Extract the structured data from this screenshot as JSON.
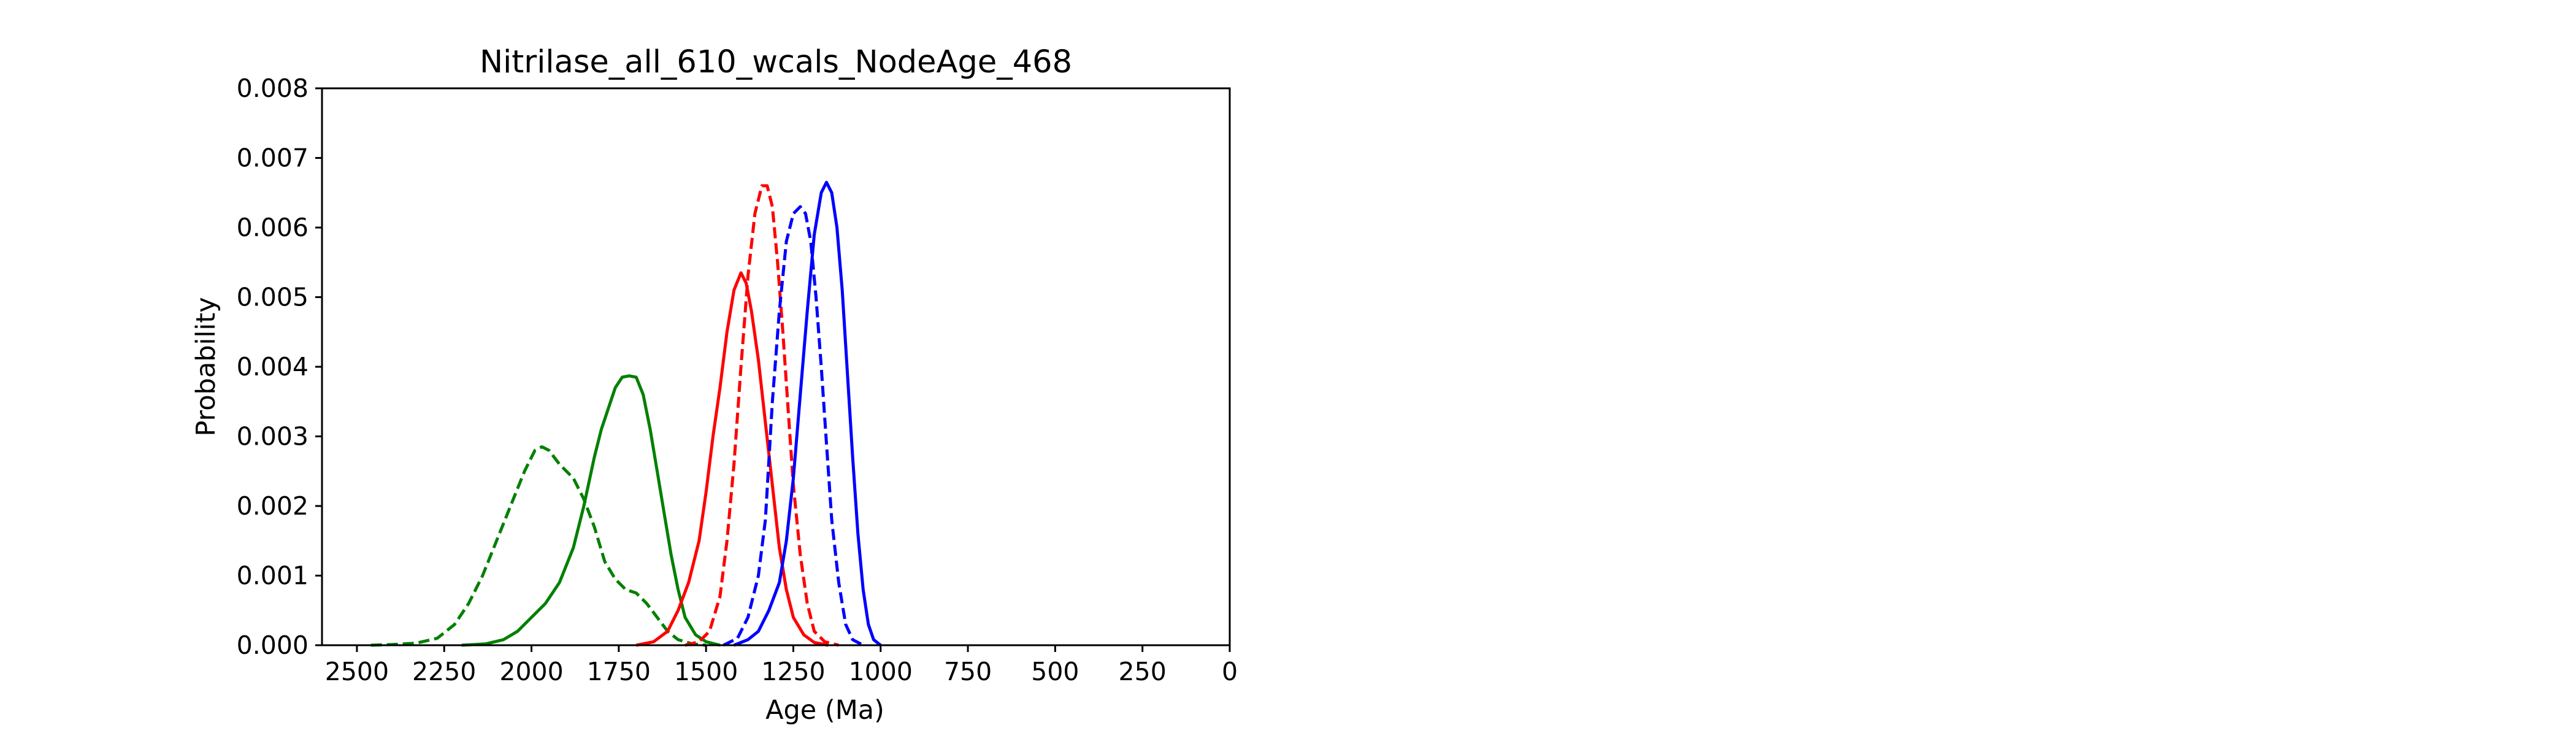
{
  "chart_data": {
    "type": "line",
    "title": "Nitrilase_all_610_wcals_NodeAge_468",
    "xlabel": "Age (Ma)",
    "ylabel": "Probability",
    "xlim": [
      2600,
      0
    ],
    "ylim": [
      0,
      0.008
    ],
    "x_reversed": true,
    "grid": false,
    "xticks": [
      2500,
      2250,
      2000,
      1750,
      1500,
      1250,
      1000,
      750,
      500,
      250,
      0
    ],
    "xtick_labels": [
      "2500",
      "2250",
      "2000",
      "1750",
      "1500",
      "1250",
      "1000",
      "750",
      "500",
      "250",
      "0"
    ],
    "yticks": [
      0,
      0.001,
      0.002,
      0.003,
      0.004,
      0.005,
      0.006,
      0.007,
      0.008
    ],
    "ytick_labels": [
      "0.000",
      "0.001",
      "0.002",
      "0.003",
      "0.004",
      "0.005",
      "0.006",
      "0.007",
      "0.008"
    ],
    "series": [
      {
        "color": "#008000",
        "dashed": true,
        "points": [
          [
            2460,
            0
          ],
          [
            2400,
            1e-05
          ],
          [
            2330,
            3e-05
          ],
          [
            2270,
            0.0001
          ],
          [
            2220,
            0.0003
          ],
          [
            2180,
            0.0006
          ],
          [
            2140,
            0.001
          ],
          [
            2100,
            0.0015
          ],
          [
            2060,
            0.002
          ],
          [
            2020,
            0.0025
          ],
          [
            1990,
            0.0028
          ],
          [
            1970,
            0.00285
          ],
          [
            1950,
            0.0028
          ],
          [
            1920,
            0.0026
          ],
          [
            1880,
            0.0024
          ],
          [
            1850,
            0.0021
          ],
          [
            1820,
            0.0017
          ],
          [
            1790,
            0.0012
          ],
          [
            1760,
            0.00095
          ],
          [
            1730,
            0.0008
          ],
          [
            1700,
            0.00075
          ],
          [
            1670,
            0.0006
          ],
          [
            1640,
            0.0004
          ],
          [
            1610,
            0.0002
          ],
          [
            1580,
            8e-05
          ],
          [
            1540,
            2e-05
          ],
          [
            1500,
            0
          ]
        ]
      },
      {
        "color": "#008000",
        "dashed": false,
        "points": [
          [
            2200,
            0
          ],
          [
            2130,
            2e-05
          ],
          [
            2080,
            8e-05
          ],
          [
            2040,
            0.0002
          ],
          [
            2000,
            0.0004
          ],
          [
            1960,
            0.0006
          ],
          [
            1920,
            0.0009
          ],
          [
            1880,
            0.0014
          ],
          [
            1850,
            0.002
          ],
          [
            1820,
            0.0027
          ],
          [
            1800,
            0.0031
          ],
          [
            1780,
            0.0034
          ],
          [
            1760,
            0.0037
          ],
          [
            1740,
            0.00385
          ],
          [
            1720,
            0.00387
          ],
          [
            1700,
            0.00385
          ],
          [
            1680,
            0.0036
          ],
          [
            1660,
            0.0031
          ],
          [
            1640,
            0.0025
          ],
          [
            1620,
            0.0019
          ],
          [
            1600,
            0.0013
          ],
          [
            1580,
            0.0008
          ],
          [
            1560,
            0.0004
          ],
          [
            1530,
            0.00015
          ],
          [
            1500,
            5e-05
          ],
          [
            1460,
            0
          ]
        ]
      },
      {
        "color": "#ff0000",
        "dashed": false,
        "points": [
          [
            1700,
            0
          ],
          [
            1650,
            5e-05
          ],
          [
            1610,
            0.0002
          ],
          [
            1580,
            0.0005
          ],
          [
            1550,
            0.0009
          ],
          [
            1520,
            0.0015
          ],
          [
            1500,
            0.0022
          ],
          [
            1480,
            0.003
          ],
          [
            1460,
            0.0037
          ],
          [
            1440,
            0.0045
          ],
          [
            1420,
            0.0051
          ],
          [
            1400,
            0.00535
          ],
          [
            1385,
            0.0052
          ],
          [
            1370,
            0.0048
          ],
          [
            1350,
            0.0041
          ],
          [
            1330,
            0.0032
          ],
          [
            1310,
            0.0023
          ],
          [
            1290,
            0.0014
          ],
          [
            1270,
            0.0008
          ],
          [
            1250,
            0.0004
          ],
          [
            1220,
            0.00015
          ],
          [
            1190,
            4e-05
          ],
          [
            1150,
            0
          ]
        ]
      },
      {
        "color": "#ff0000",
        "dashed": true,
        "points": [
          [
            1560,
            0
          ],
          [
            1520,
            5e-05
          ],
          [
            1490,
            0.0002
          ],
          [
            1460,
            0.0007
          ],
          [
            1440,
            0.0015
          ],
          [
            1420,
            0.0026
          ],
          [
            1400,
            0.004
          ],
          [
            1380,
            0.0053
          ],
          [
            1360,
            0.0062
          ],
          [
            1340,
            0.0066
          ],
          [
            1325,
            0.0066
          ],
          [
            1310,
            0.0063
          ],
          [
            1295,
            0.0055
          ],
          [
            1280,
            0.0045
          ],
          [
            1265,
            0.0034
          ],
          [
            1250,
            0.0023
          ],
          [
            1230,
            0.0013
          ],
          [
            1210,
            0.0006
          ],
          [
            1190,
            0.0002
          ],
          [
            1160,
            5e-05
          ],
          [
            1120,
            0
          ]
        ]
      },
      {
        "color": "#0000ff",
        "dashed": true,
        "points": [
          [
            1450,
            0
          ],
          [
            1410,
            0.0001
          ],
          [
            1380,
            0.0004
          ],
          [
            1350,
            0.001
          ],
          [
            1330,
            0.0018
          ],
          [
            1310,
            0.0035
          ],
          [
            1290,
            0.0048
          ],
          [
            1270,
            0.0058
          ],
          [
            1250,
            0.0062
          ],
          [
            1230,
            0.0063
          ],
          [
            1215,
            0.0062
          ],
          [
            1200,
            0.0058
          ],
          [
            1185,
            0.005
          ],
          [
            1170,
            0.004
          ],
          [
            1155,
            0.0029
          ],
          [
            1140,
            0.0018
          ],
          [
            1120,
            0.0009
          ],
          [
            1100,
            0.0003
          ],
          [
            1080,
            8e-05
          ],
          [
            1050,
            0
          ]
        ]
      },
      {
        "color": "#0000ff",
        "dashed": false,
        "points": [
          [
            1420,
            0
          ],
          [
            1380,
            8e-05
          ],
          [
            1350,
            0.0002
          ],
          [
            1320,
            0.0005
          ],
          [
            1290,
            0.0009
          ],
          [
            1270,
            0.0015
          ],
          [
            1250,
            0.0024
          ],
          [
            1230,
            0.0036
          ],
          [
            1210,
            0.0048
          ],
          [
            1190,
            0.0059
          ],
          [
            1170,
            0.0065
          ],
          [
            1155,
            0.00665
          ],
          [
            1140,
            0.0065
          ],
          [
            1125,
            0.006
          ],
          [
            1110,
            0.0051
          ],
          [
            1095,
            0.0039
          ],
          [
            1080,
            0.0027
          ],
          [
            1065,
            0.0016
          ],
          [
            1050,
            0.0008
          ],
          [
            1035,
            0.0003
          ],
          [
            1020,
            8e-05
          ],
          [
            1000,
            0
          ]
        ]
      }
    ]
  }
}
